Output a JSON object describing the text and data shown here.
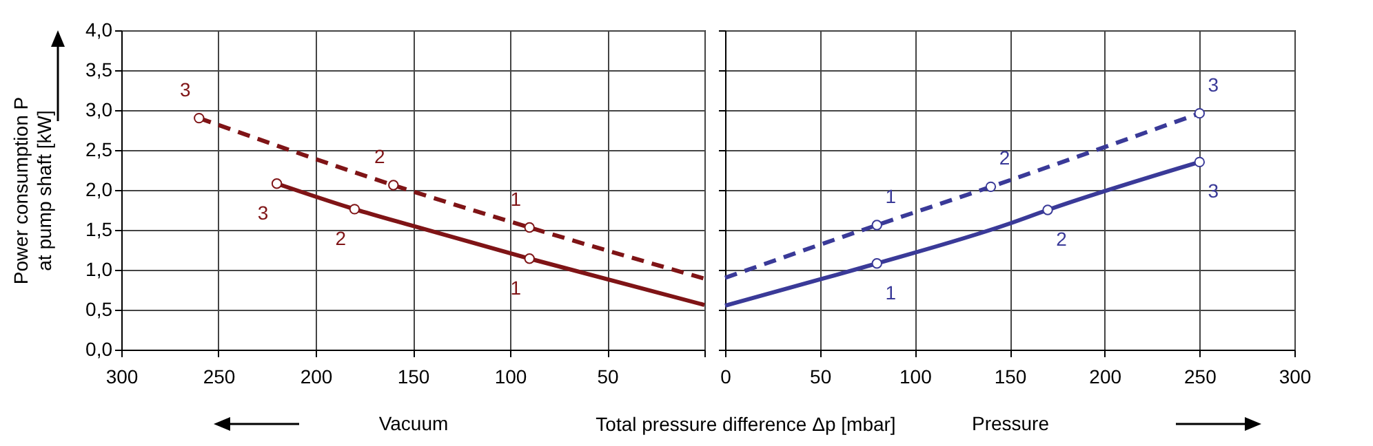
{
  "chart_data": [
    {
      "type": "line",
      "xlabel": "Vacuum",
      "ylabel": "Power consumption P\nat pump shaft [kW]",
      "grid": true,
      "xlim": [
        300,
        0
      ],
      "xticks": [
        300,
        250,
        200,
        150,
        100,
        50,
        {
          "value": 0,
          "label": null
        }
      ],
      "ylim": [
        0,
        4
      ],
      "yticks": [
        {
          "value": 0,
          "label": "0,0"
        },
        {
          "value": 0.5,
          "label": "0,5"
        },
        {
          "value": 1,
          "label": "1,0"
        },
        {
          "value": 1.5,
          "label": "1,5"
        },
        {
          "value": 2,
          "label": "2,0"
        },
        {
          "value": 2.5,
          "label": "2,5"
        },
        {
          "value": 3,
          "label": "3,0"
        },
        {
          "value": 3.5,
          "label": "3,5"
        },
        {
          "value": 4,
          "label": "4,0"
        }
      ],
      "series": [
        {
          "type": "line",
          "line_style": "dashed",
          "color": "#7f1416",
          "x": [
            260,
            160,
            90,
            0
          ],
          "values": [
            2.9,
            2.06,
            1.53,
            0.89
          ]
        },
        {
          "type": "line",
          "line_style": "solid",
          "color": "#7f1416",
          "x": [
            220,
            180,
            150,
            90,
            0
          ],
          "values": [
            2.08,
            1.76,
            1.55,
            1.14,
            0.56
          ]
        },
        {
          "type": "scatter",
          "marker": "circle",
          "color": "#7f1416",
          "x": [
            260,
            160,
            90,
            220,
            180,
            90
          ],
          "values": [
            2.9,
            2.06,
            1.53,
            2.08,
            1.76,
            1.14
          ]
        }
      ],
      "annotations": [
        {
          "text": "3",
          "x": 260,
          "y": 2.9
        },
        {
          "text": "2",
          "x": 160,
          "y": 2.06
        },
        {
          "text": "1",
          "x": 90,
          "y": 1.53
        },
        {
          "text": "3",
          "x": 220,
          "y": 2.08
        },
        {
          "text": "2",
          "x": 180,
          "y": 1.76
        },
        {
          "text": "1",
          "x": 90,
          "y": 1.14
        },
        "Total pressure difference Δp [mbar]"
      ]
    },
    {
      "type": "line",
      "xlabel": "Pressure",
      "grid": true,
      "tick_labels": "x",
      "xlim": [
        0,
        300
      ],
      "xticks": [
        0,
        50,
        100,
        150,
        200,
        250,
        300
      ],
      "ylim": [
        0,
        4
      ],
      "yticks": [
        {
          "value": 0,
          "label": null
        },
        {
          "value": 0.5,
          "label": null
        },
        {
          "value": 1,
          "label": null
        },
        {
          "value": 1.5,
          "label": null
        },
        {
          "value": 2,
          "label": null
        },
        {
          "value": 2.5,
          "label": null
        },
        {
          "value": 3,
          "label": null
        },
        {
          "value": 3.5,
          "label": null
        },
        {
          "value": 4,
          "label": null
        }
      ],
      "series": [
        {
          "type": "line",
          "line_style": "dashed",
          "color": "#3a3a98",
          "x": [
            0,
            80,
            140,
            250
          ],
          "values": [
            0.9,
            1.56,
            2.04,
            2.96
          ]
        },
        {
          "type": "line",
          "line_style": "solid",
          "color": "#3a3a98",
          "x": [
            0,
            50,
            80,
            150,
            170,
            250
          ],
          "values": [
            0.55,
            0.88,
            1.08,
            1.58,
            1.75,
            2.35
          ]
        },
        {
          "type": "scatter",
          "marker": "circle",
          "color": "#3a3a98",
          "x": [
            80,
            140,
            250,
            80,
            170,
            250
          ],
          "values": [
            1.56,
            2.04,
            2.96,
            1.08,
            1.75,
            2.35
          ]
        }
      ],
      "annotations": [
        {
          "text": "1",
          "x": 80,
          "y": 1.56
        },
        {
          "text": "2",
          "x": 140,
          "y": 2.04
        },
        {
          "text": "3",
          "x": 250,
          "y": 2.96
        },
        {
          "text": "1",
          "x": 80,
          "y": 1.08
        },
        {
          "text": "2",
          "x": 170,
          "y": 1.75
        },
        {
          "text": "3",
          "x": 250,
          "y": 2.35
        }
      ]
    }
  ]
}
